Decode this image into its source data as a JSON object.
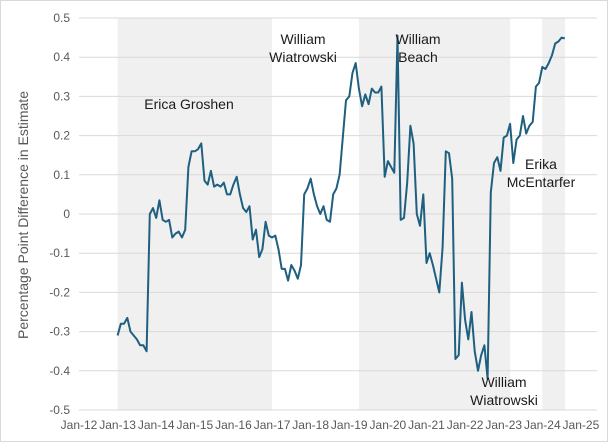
{
  "chart_data": {
    "type": "line",
    "title": "",
    "xlabel": "",
    "ylabel": "Percentage Point Difference in Estimate",
    "x_ticks": [
      "Jan-12",
      "Jan-13",
      "Jan-14",
      "Jan-15",
      "Jan-16",
      "Jan-17",
      "Jan-18",
      "Jan-19",
      "Jan-20",
      "Jan-21",
      "Jan-22",
      "Jan-23",
      "Jan-24",
      "Jan-25"
    ],
    "x_range": [
      "2012-01",
      "2025-06"
    ],
    "ylim": [
      -0.5,
      0.5
    ],
    "y_ticks": [
      "0.5",
      "0.4",
      "0.3",
      "0.2",
      "0.1",
      "0",
      "-0.1",
      "-0.2",
      "-0.3",
      "-0.4",
      "-0.5"
    ],
    "grid": "horizontal",
    "line_color": "#1f5f7f",
    "shade_color": "#f0f0f0",
    "tenures": [
      {
        "name": "Erica Groshen",
        "start": "2013-01",
        "end": "2017-01",
        "shaded": true
      },
      {
        "name": "William Wiatrowski",
        "start": "2017-01",
        "end": "2019-04",
        "shaded": false
      },
      {
        "name": "William Beach",
        "start": "2019-04",
        "end": "2023-03",
        "shaded": true
      },
      {
        "name": "William Wiatrowski",
        "start": "2023-03",
        "end": "2024-01",
        "shaded": false
      },
      {
        "name": "Erika McEntarfer",
        "start": "2024-01",
        "end": "2025-06",
        "shaded": true
      }
    ],
    "annotations": [
      {
        "lines": [
          "Erica Groshen"
        ],
        "anchor": "2015-03"
      },
      {
        "lines": [
          "William",
          "Wiatrowski"
        ],
        "anchor": "2018-03"
      },
      {
        "lines": [
          "William",
          "Beach"
        ],
        "anchor": "2020-09"
      },
      {
        "lines": [
          "William",
          "Wiatrowski"
        ],
        "anchor": "2023-09"
      },
      {
        "lines": [
          "Erika",
          "McEntarfer"
        ],
        "anchor": "2024-09"
      }
    ],
    "series": [
      {
        "points": [
          [
            "2013-01",
            -0.31
          ],
          [
            "2013-02",
            -0.28
          ],
          [
            "2013-03",
            -0.28
          ],
          [
            "2013-04",
            -0.265
          ],
          [
            "2013-05",
            -0.3
          ],
          [
            "2013-06",
            -0.31
          ],
          [
            "2013-07",
            -0.32
          ],
          [
            "2013-08",
            -0.335
          ],
          [
            "2013-09",
            -0.335
          ],
          [
            "2013-10",
            -0.35
          ],
          [
            "2013-11",
            0.0
          ],
          [
            "2013-12",
            0.015
          ],
          [
            "2014-01",
            -0.01
          ],
          [
            "2014-02",
            0.035
          ],
          [
            "2014-03",
            -0.015
          ],
          [
            "2014-04",
            -0.02
          ],
          [
            "2014-05",
            -0.015
          ],
          [
            "2014-06",
            -0.06
          ],
          [
            "2014-07",
            -0.05
          ],
          [
            "2014-08",
            -0.045
          ],
          [
            "2014-09",
            -0.06
          ],
          [
            "2014-10",
            -0.04
          ],
          [
            "2014-11",
            0.12
          ],
          [
            "2014-12",
            0.16
          ],
          [
            "2015-01",
            0.16
          ],
          [
            "2015-02",
            0.165
          ],
          [
            "2015-03",
            0.18
          ],
          [
            "2015-04",
            0.085
          ],
          [
            "2015-05",
            0.075
          ],
          [
            "2015-06",
            0.11
          ],
          [
            "2015-07",
            0.07
          ],
          [
            "2015-08",
            0.075
          ],
          [
            "2015-09",
            0.07
          ],
          [
            "2015-10",
            0.08
          ],
          [
            "2015-11",
            0.05
          ],
          [
            "2015-12",
            0.05
          ],
          [
            "2016-01",
            0.075
          ],
          [
            "2016-02",
            0.095
          ],
          [
            "2016-03",
            0.05
          ],
          [
            "2016-04",
            0.015
          ],
          [
            "2016-05",
            0.005
          ],
          [
            "2016-06",
            0.02
          ],
          [
            "2016-07",
            -0.065
          ],
          [
            "2016-08",
            -0.04
          ],
          [
            "2016-09",
            -0.11
          ],
          [
            "2016-10",
            -0.09
          ],
          [
            "2016-11",
            -0.02
          ],
          [
            "2016-12",
            -0.055
          ],
          [
            "2017-01",
            -0.06
          ],
          [
            "2017-02",
            -0.055
          ],
          [
            "2017-03",
            -0.09
          ],
          [
            "2017-04",
            -0.14
          ],
          [
            "2017-05",
            -0.14
          ],
          [
            "2017-06",
            -0.17
          ],
          [
            "2017-07",
            -0.13
          ],
          [
            "2017-08",
            -0.145
          ],
          [
            "2017-09",
            -0.165
          ],
          [
            "2017-10",
            -0.13
          ],
          [
            "2017-11",
            0.05
          ],
          [
            "2017-12",
            0.065
          ],
          [
            "2018-01",
            0.09
          ],
          [
            "2018-02",
            0.05
          ],
          [
            "2018-03",
            0.02
          ],
          [
            "2018-04",
            0.0
          ],
          [
            "2018-05",
            0.02
          ],
          [
            "2018-06",
            -0.015
          ],
          [
            "2018-07",
            -0.02
          ],
          [
            "2018-08",
            0.05
          ],
          [
            "2018-09",
            0.065
          ],
          [
            "2018-10",
            0.1
          ],
          [
            "2018-11",
            0.195
          ],
          [
            "2018-12",
            0.29
          ],
          [
            "2019-01",
            0.3
          ],
          [
            "2019-02",
            0.36
          ],
          [
            "2019-03",
            0.385
          ],
          [
            "2019-04",
            0.32
          ],
          [
            "2019-05",
            0.275
          ],
          [
            "2019-06",
            0.305
          ],
          [
            "2019-07",
            0.28
          ],
          [
            "2019-08",
            0.32
          ],
          [
            "2019-09",
            0.31
          ],
          [
            "2019-10",
            0.31
          ],
          [
            "2019-11",
            0.325
          ],
          [
            "2019-12",
            0.095
          ],
          [
            "2020-01",
            0.135
          ],
          [
            "2020-02",
            0.12
          ],
          [
            "2020-03",
            0.105
          ],
          [
            "2020-04",
            0.455
          ],
          [
            "2020-05",
            -0.015
          ],
          [
            "2020-06",
            -0.01
          ],
          [
            "2020-07",
            0.08
          ],
          [
            "2020-08",
            0.225
          ],
          [
            "2020-09",
            0.18
          ],
          [
            "2020-10",
            0.0
          ],
          [
            "2020-11",
            -0.03
          ],
          [
            "2020-12",
            0.05
          ],
          [
            "2021-01",
            -0.125
          ],
          [
            "2021-02",
            -0.1
          ],
          [
            "2021-03",
            -0.13
          ],
          [
            "2021-04",
            -0.165
          ],
          [
            "2021-05",
            -0.2
          ],
          [
            "2021-06",
            -0.085
          ],
          [
            "2021-07",
            0.16
          ],
          [
            "2021-08",
            0.155
          ],
          [
            "2021-09",
            0.09
          ],
          [
            "2021-10",
            -0.37
          ],
          [
            "2021-11",
            -0.36
          ],
          [
            "2021-12",
            -0.175
          ],
          [
            "2022-01",
            -0.27
          ],
          [
            "2022-02",
            -0.32
          ],
          [
            "2022-03",
            -0.25
          ],
          [
            "2022-04",
            -0.35
          ],
          [
            "2022-05",
            -0.4
          ],
          [
            "2022-06",
            -0.36
          ],
          [
            "2022-07",
            -0.335
          ],
          [
            "2022-08",
            -0.42
          ],
          [
            "2022-09",
            0.055
          ],
          [
            "2022-10",
            0.13
          ],
          [
            "2022-11",
            0.145
          ],
          [
            "2022-12",
            0.11
          ],
          [
            "2023-01",
            0.195
          ],
          [
            "2023-02",
            0.2
          ],
          [
            "2023-03",
            0.23
          ],
          [
            "2023-04",
            0.13
          ],
          [
            "2023-05",
            0.19
          ],
          [
            "2023-06",
            0.2
          ],
          [
            "2023-07",
            0.25
          ],
          [
            "2023-08",
            0.205
          ],
          [
            "2023-09",
            0.225
          ],
          [
            "2023-10",
            0.235
          ],
          [
            "2023-11",
            0.325
          ],
          [
            "2023-12",
            0.335
          ],
          [
            "2024-01",
            0.375
          ],
          [
            "2024-02",
            0.37
          ],
          [
            "2024-03",
            0.385
          ],
          [
            "2024-04",
            0.405
          ],
          [
            "2024-05",
            0.435
          ],
          [
            "2024-06",
            0.44
          ],
          [
            "2024-07",
            0.45
          ],
          [
            "2024-08",
            0.448
          ]
        ]
      }
    ]
  }
}
